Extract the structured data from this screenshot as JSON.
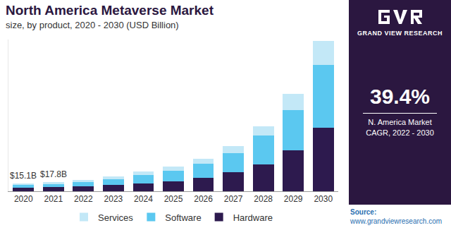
{
  "chart_data": {
    "type": "bar",
    "title": "North America Metaverse Market",
    "subtitle": "size, by product, 2020 - 2030 (USD Billion)",
    "categories": [
      "2020",
      "2021",
      "2022",
      "2023",
      "2024",
      "2025",
      "2026",
      "2027",
      "2028",
      "2029",
      "2030"
    ],
    "series": [
      {
        "name": "Hardware",
        "color": "#2d1a4e",
        "values": [
          6.8,
          7.8,
          9.6,
          12.5,
          16,
          20,
          26,
          38,
          53,
          81,
          125
        ]
      },
      {
        "name": "Software",
        "color": "#5bc8f0",
        "values": [
          5.6,
          6.8,
          8.4,
          11.5,
          15.5,
          20,
          28,
          37,
          57,
          80,
          125
        ]
      },
      {
        "name": "Services",
        "color": "#c3e8f7",
        "values": [
          2.7,
          3.2,
          4.0,
          5.0,
          7,
          9,
          10,
          14,
          19,
          31,
          47
        ]
      }
    ],
    "stacked": true,
    "ylim": [
      0,
      300
    ],
    "grid": false,
    "legend": "bottom",
    "tick_labels": "x",
    "annotations": [
      {
        "category": "2020",
        "text": "$15.1B"
      },
      {
        "category": "2021",
        "text": "$17.8B"
      }
    ]
  },
  "brand": "GRAND VIEW RESEARCH",
  "callout": {
    "value": "39.4%",
    "label": "N. America Market CAGR, 2022 - 2030"
  },
  "source": {
    "label": "Source:",
    "text": "www.grandviewresearch.com"
  }
}
